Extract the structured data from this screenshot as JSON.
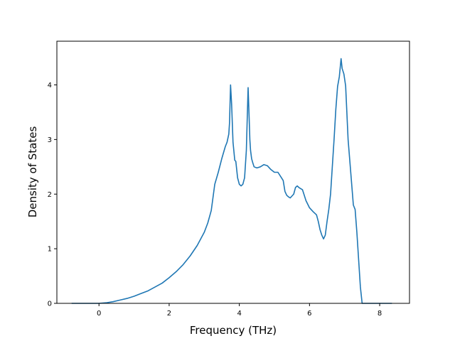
{
  "chart_data": {
    "type": "line",
    "title": "",
    "xlabel": "Frequency (THz)",
    "ylabel": "Density of States",
    "xlim": [
      -1.2,
      8.85
    ],
    "ylim": [
      0,
      4.8
    ],
    "xticks": [
      0,
      2,
      4,
      6,
      8
    ],
    "yticks": [
      0,
      1,
      2,
      3,
      4
    ],
    "grid": false,
    "legend": "none",
    "series": [
      {
        "color": "#1f77b4",
        "x": [
          -0.78,
          -0.4,
          0.0,
          0.2,
          0.4,
          0.6,
          0.8,
          1.0,
          1.2,
          1.4,
          1.6,
          1.8,
          2.0,
          2.2,
          2.4,
          2.6,
          2.8,
          3.0,
          3.1,
          3.2,
          3.3,
          3.4,
          3.5,
          3.6,
          3.65,
          3.7,
          3.72,
          3.75,
          3.78,
          3.82,
          3.87,
          3.9,
          3.95,
          4.0,
          4.05,
          4.1,
          4.15,
          4.2,
          4.25,
          4.28,
          4.3,
          4.32,
          4.35,
          4.38,
          4.42,
          4.5,
          4.6,
          4.7,
          4.8,
          4.9,
          5.0,
          5.1,
          5.2,
          5.25,
          5.3,
          5.35,
          5.4,
          5.45,
          5.55,
          5.6,
          5.65,
          5.7,
          5.8,
          5.85,
          5.9,
          6.0,
          6.1,
          6.2,
          6.25,
          6.3,
          6.35,
          6.4,
          6.45,
          6.5,
          6.55,
          6.6,
          6.65,
          6.7,
          6.75,
          6.8,
          6.85,
          6.9,
          6.93,
          6.98,
          7.03,
          7.1,
          7.15,
          7.2,
          7.25,
          7.3,
          7.35,
          7.4,
          7.45,
          7.5,
          7.55,
          7.6,
          7.65,
          7.7,
          8.0,
          8.35
        ],
        "y": [
          0.0,
          0.0,
          0.0,
          0.01,
          0.03,
          0.06,
          0.09,
          0.13,
          0.18,
          0.23,
          0.3,
          0.37,
          0.47,
          0.58,
          0.71,
          0.87,
          1.06,
          1.3,
          1.47,
          1.7,
          2.18,
          2.4,
          2.65,
          2.87,
          2.95,
          3.1,
          3.3,
          4.0,
          3.65,
          2.95,
          2.62,
          2.6,
          2.3,
          2.18,
          2.15,
          2.18,
          2.3,
          2.8,
          3.95,
          3.4,
          3.0,
          2.8,
          2.65,
          2.58,
          2.5,
          2.48,
          2.5,
          2.54,
          2.52,
          2.45,
          2.4,
          2.4,
          2.3,
          2.25,
          2.05,
          1.98,
          1.95,
          1.93,
          2.0,
          2.12,
          2.15,
          2.12,
          2.08,
          1.98,
          1.88,
          1.75,
          1.68,
          1.62,
          1.5,
          1.35,
          1.25,
          1.18,
          1.25,
          1.5,
          1.72,
          2.0,
          2.5,
          3.0,
          3.55,
          3.97,
          4.15,
          4.48,
          4.3,
          4.2,
          3.98,
          3.0,
          2.6,
          2.2,
          1.8,
          1.72,
          1.3,
          0.8,
          0.3,
          0.0,
          0.0,
          0.0,
          0.0,
          0.0,
          0.0,
          0.0
        ]
      }
    ]
  }
}
